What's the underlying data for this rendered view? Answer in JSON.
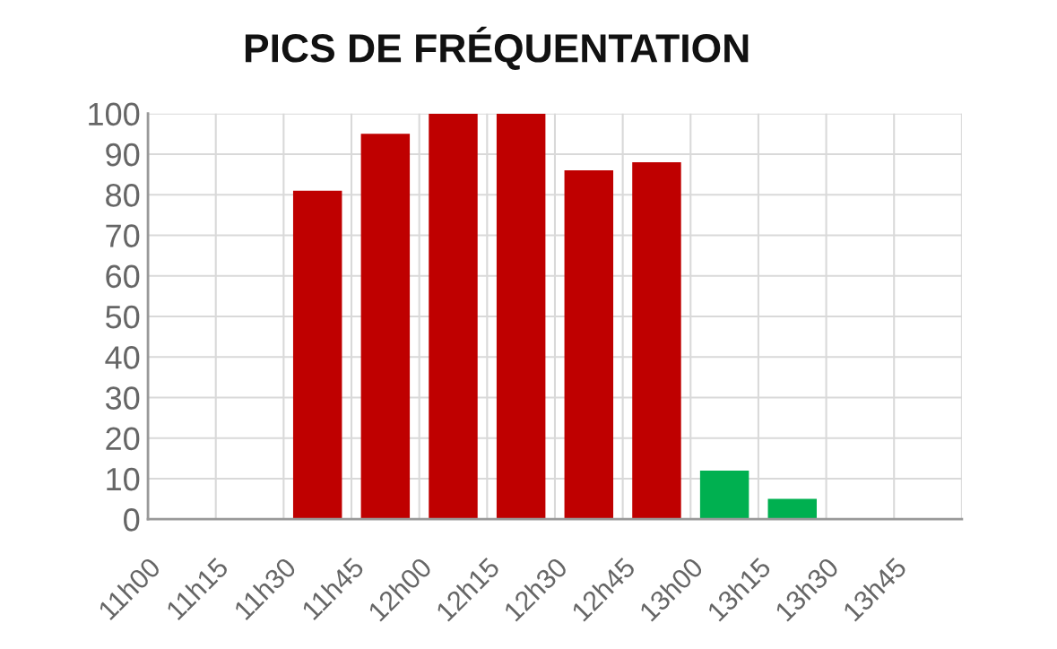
{
  "chart_data": {
    "type": "bar",
    "title": "PICS DE FRÉQUENTATION",
    "categories": [
      "11h00",
      "11h15",
      "11h30",
      "11h45",
      "12h00",
      "12h15",
      "12h30",
      "12h45",
      "13h00",
      "13h15",
      "13h30",
      "13h45"
    ],
    "values": [
      0,
      0,
      81,
      95,
      100,
      100,
      86,
      88,
      12,
      5,
      0,
      0
    ],
    "colors": [
      "#bf0000",
      "#bf0000",
      "#bf0000",
      "#bf0000",
      "#bf0000",
      "#bf0000",
      "#bf0000",
      "#bf0000",
      "#00b050",
      "#00b050",
      "#00b050",
      "#00b050"
    ],
    "ylim": [
      0,
      100
    ],
    "yticks": [
      0,
      10,
      20,
      30,
      40,
      50,
      60,
      70,
      80,
      90,
      100
    ],
    "grid": true
  }
}
